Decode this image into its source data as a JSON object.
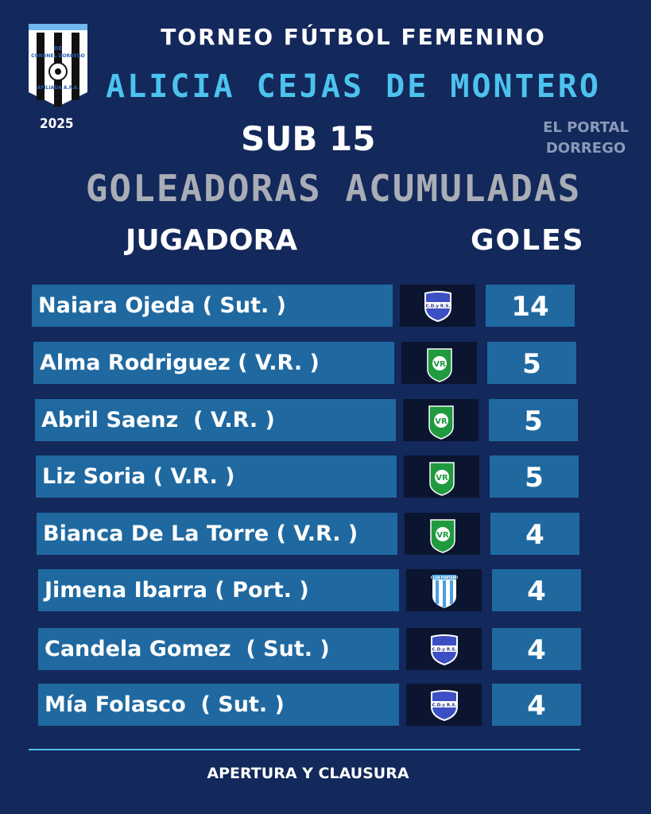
{
  "header": {
    "logo_text": "LIGA DE FUTBOL DE CORONEL DORREGO AFILIADA A LA A.F.A.",
    "year": "2025",
    "title": "TORNEO FÚTBOL FEMENINO",
    "subtitle": "ALICIA CEJAS DE MONTERO",
    "category": "SUB 15",
    "watermark": "EL PORTAL DORREGO",
    "heading": "GOLEADORAS ACUMULADAS"
  },
  "columns": {
    "player": "JUGADORA",
    "goals": "GOLES"
  },
  "colors": {
    "background": "#13285b",
    "row": "#1f69a0",
    "accent": "#4cc3ee",
    "badge_bg": "#0b1530"
  },
  "rows": [
    {
      "name": "Naiara Ojeda ( Sut. )",
      "crest": "sutton-crest",
      "goals": "14"
    },
    {
      "name": "Alma Rodriguez ( V.R. )",
      "crest": "villa-rosa-crest",
      "goals": "5"
    },
    {
      "name": "Abril Saenz  ( V.R. )",
      "crest": "villa-rosa-crest",
      "goals": "5"
    },
    {
      "name": "Liz Soria ( V.R. )",
      "crest": "villa-rosa-crest",
      "goals": "5"
    },
    {
      "name": "Bianca De La Torre ( V.R. )",
      "crest": "villa-rosa-crest",
      "goals": "4"
    },
    {
      "name": "Jimena Ibarra ( Port. )",
      "crest": "porteno-crest",
      "goals": "4"
    },
    {
      "name": "Candela Gomez  ( Sut. )",
      "crest": "sutton-crest",
      "goals": "4"
    },
    {
      "name": "Mía Folasco  ( Sut. )",
      "crest": "sutton-crest",
      "goals": "4"
    }
  ],
  "crest_text": {
    "sutton": "C.D.y R.S.",
    "porteno": "CLUB PORTEÑO"
  },
  "footer": "APERTURA Y CLAUSURA"
}
